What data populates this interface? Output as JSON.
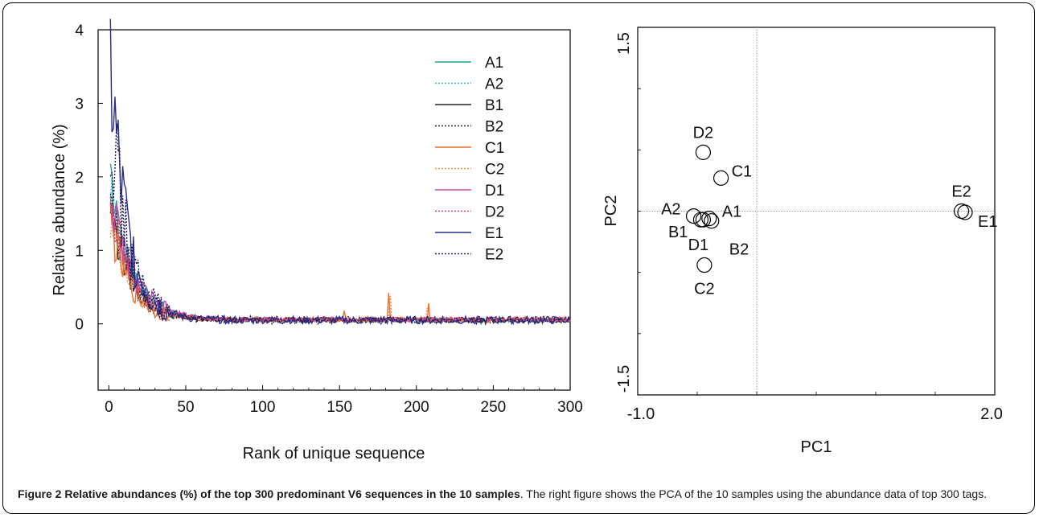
{
  "chart_data": [
    {
      "type": "line",
      "xlabel": "Rank of unique sequence",
      "ylabel": "Relative abundance (%)",
      "xlim": [
        -7,
        300
      ],
      "ylim": [
        -0.9,
        4
      ],
      "xticks": [
        0,
        50,
        100,
        150,
        200,
        250,
        300
      ],
      "yticks": [
        0,
        1,
        2,
        3,
        4
      ],
      "legend_position": "top-right",
      "series": [
        {
          "name": "A1",
          "color": "#1aa3a3",
          "style": "solid",
          "start": 1.95,
          "decay": 0.07,
          "floor": 0.05,
          "noise": 0.05
        },
        {
          "name": "A2",
          "color": "#2bb7b7",
          "style": "dotted",
          "start": 1.9,
          "decay": 0.07,
          "floor": 0.05,
          "noise": 0.06
        },
        {
          "name": "B1",
          "color": "#222222",
          "style": "solid",
          "start": 1.6,
          "decay": 0.075,
          "floor": 0.05,
          "noise": 0.07
        },
        {
          "name": "B2",
          "color": "#222222",
          "style": "dotted",
          "start": 1.7,
          "decay": 0.07,
          "floor": 0.05,
          "noise": 0.07
        },
        {
          "name": "C1",
          "color": "#e8702a",
          "style": "solid",
          "start": 1.4,
          "decay": 0.08,
          "floor": 0.06,
          "noise": 0.08
        },
        {
          "name": "C2",
          "color": "#f0894a",
          "style": "dotted",
          "start": 1.5,
          "decay": 0.08,
          "floor": 0.06,
          "noise": 0.08
        },
        {
          "name": "D1",
          "color": "#c24aa8",
          "style": "solid",
          "start": 1.8,
          "decay": 0.07,
          "floor": 0.06,
          "noise": 0.07
        },
        {
          "name": "D2",
          "color": "#e0356a",
          "style": "dotted",
          "start": 1.7,
          "decay": 0.07,
          "floor": 0.06,
          "noise": 0.07
        },
        {
          "name": "E1",
          "color": "#2a2a8a",
          "style": "solid",
          "start": 3.5,
          "decay": 0.09,
          "floor": 0.05,
          "noise": 0.12
        },
        {
          "name": "E2",
          "color": "#1e1e5a",
          "style": "dotted",
          "start": 3.0,
          "decay": 0.09,
          "floor": 0.05,
          "noise": 0.12
        }
      ]
    },
    {
      "type": "scatter",
      "xlabel": "PC1",
      "ylabel": "PC2",
      "xlim": [
        -1.0,
        2.0
      ],
      "ylim": [
        -1.5,
        1.5
      ],
      "xtick_labels": [
        "-1.0",
        "2.0"
      ],
      "ytick_labels": [
        "1.5",
        "-1.5"
      ],
      "reference_lines": {
        "x": 0.0,
        "y": 0.0
      },
      "points": [
        {
          "label": "A1",
          "x": -0.4,
          "y": -0.06,
          "label_pos": "right-up"
        },
        {
          "label": "A2",
          "x": -0.53,
          "y": -0.04,
          "label_pos": "left-up"
        },
        {
          "label": "B1",
          "x": -0.47,
          "y": -0.07,
          "label_pos": "left-down"
        },
        {
          "label": "B2",
          "x": -0.38,
          "y": -0.08,
          "label_pos": "below-right"
        },
        {
          "label": "C1",
          "x": -0.3,
          "y": 0.27,
          "label_pos": "right"
        },
        {
          "label": "C2",
          "x": -0.44,
          "y": -0.44,
          "label_pos": "below"
        },
        {
          "label": "D1",
          "x": -0.45,
          "y": -0.07,
          "label_pos": "below-left"
        },
        {
          "label": "D2",
          "x": -0.45,
          "y": 0.48,
          "label_pos": "above"
        },
        {
          "label": "E1",
          "x": 1.75,
          "y": -0.01,
          "label_pos": "right-down"
        },
        {
          "label": "E2",
          "x": 1.72,
          "y": 0.0,
          "label_pos": "above"
        }
      ]
    }
  ],
  "caption": {
    "bold": "Figure 2 Relative abundances (%) of the top 300 predominant V6 sequences in the 10 samples",
    "rest": ". The right figure shows the PCA of the 10 samples using the abundance data of top 300 tags."
  }
}
